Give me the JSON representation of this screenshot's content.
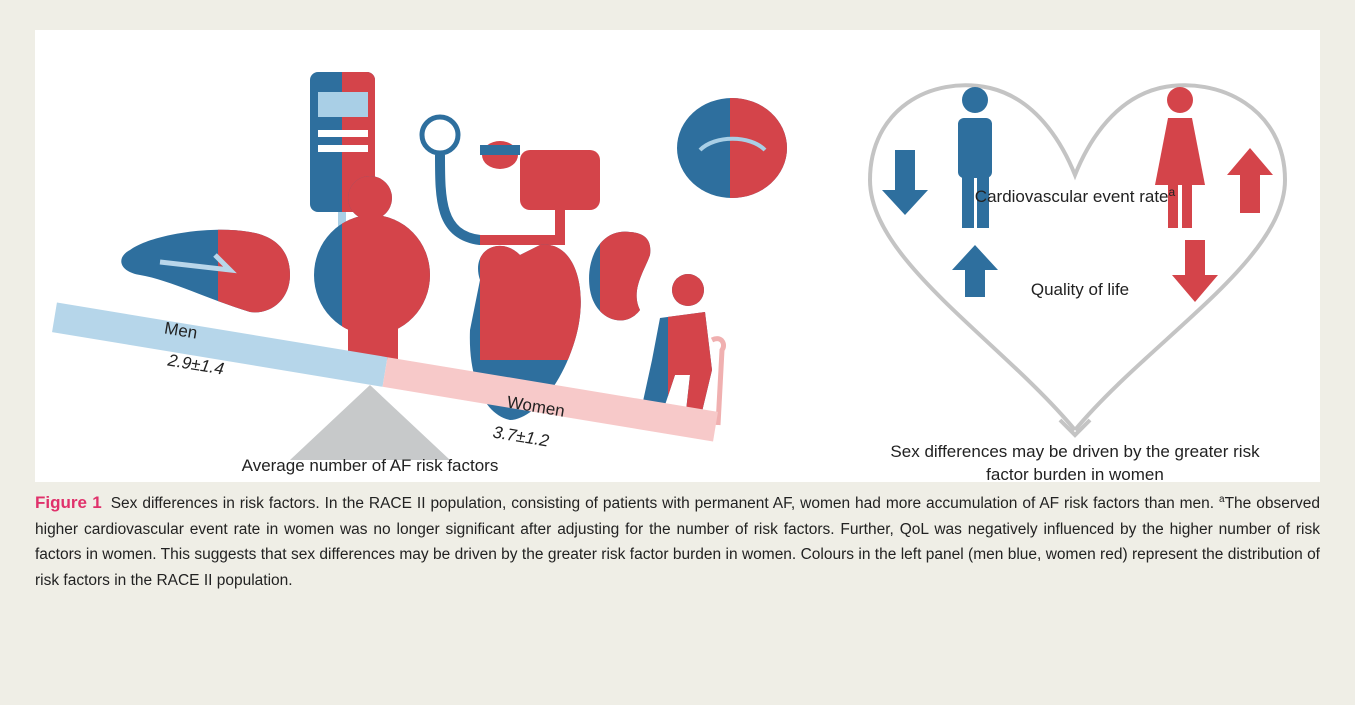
{
  "left_panel": {
    "men_label": "Men",
    "men_value": "2.9±1.4",
    "women_label": "Women",
    "women_value": "3.7±1.2",
    "axis_caption": "Average number of AF risk factors"
  },
  "right_panel": {
    "event_rate": "Cardiovascular event rate",
    "event_rate_note": "a",
    "quality_of_life": "Quality of life",
    "conclusion": "Sex differences may be driven by the greater risk factor burden in women"
  },
  "caption": {
    "label": "Figure 1",
    "text_1": "Sex differences in risk factors. In the RACE II population, consisting of patients with permanent AF, women had more accumulation of AF risk factors than men.",
    "note": "a",
    "text_2": "The observed higher cardiovascular event rate in women was no longer significant after adjusting for the number of risk factors. Further, QoL was negatively influenced by the higher number of risk factors in women. This suggests that sex differences may be driven by the greater risk factor burden in women. Colours in the left panel (men blue, women red) represent the distribution of risk factors in the RACE II population."
  }
}
